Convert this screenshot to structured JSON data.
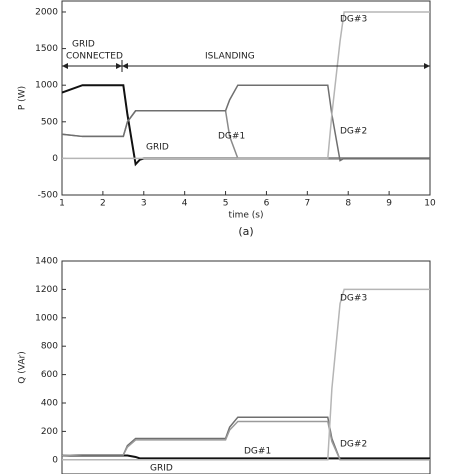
{
  "chart_data": [
    {
      "type": "line",
      "xlabel": "time (s)",
      "ylabel": "P (W)",
      "caption": "(a)",
      "xlim": [
        1,
        10
      ],
      "xticks": [
        1,
        2,
        3,
        4,
        5,
        6,
        7,
        8,
        9,
        10
      ],
      "ylim": [
        -500,
        2150
      ],
      "yticks": [
        -500,
        0,
        500,
        1000,
        1500,
        2000
      ],
      "x": [
        1,
        1.5,
        2.5,
        2.6,
        2.8,
        2.9,
        3,
        5,
        5.1,
        5.3,
        7.5,
        7.6,
        7.8,
        7.9,
        10
      ],
      "series": [
        {
          "name": "GRID",
          "color": "#111111",
          "values": [
            900,
            1000,
            1000,
            600,
            -80,
            -20,
            0,
            0,
            0,
            0,
            0,
            0,
            0,
            0,
            0
          ]
        },
        {
          "name": "DG#1",
          "color": "#8a8a8a",
          "values": [
            330,
            300,
            300,
            500,
            650,
            650,
            650,
            650,
            300,
            0,
            0,
            0,
            0,
            0,
            0
          ]
        },
        {
          "name": "DG#2",
          "color": "#6f6f6f",
          "values": [
            330,
            300,
            300,
            500,
            650,
            650,
            650,
            650,
            800,
            1000,
            1000,
            600,
            -30,
            0,
            0
          ]
        },
        {
          "name": "DG#3",
          "color": "#b5b5b5",
          "values": [
            0,
            0,
            0,
            0,
            0,
            0,
            0,
            0,
            0,
            0,
            0,
            600,
            1600,
            2000,
            2000
          ]
        }
      ],
      "annotations": [
        "GRID",
        "CONNECTED",
        "ISLANDING",
        "GRID",
        "DG#1",
        "DG#2",
        "DG#3"
      ]
    },
    {
      "type": "line",
      "ylabel": "Q (VAr)",
      "xlim": [
        1,
        10
      ],
      "ylim": [
        -100,
        1400
      ],
      "yticks": [
        0,
        200,
        400,
        600,
        800,
        1000,
        1200,
        1400
      ],
      "x": [
        1,
        1.5,
        2.5,
        2.6,
        2.8,
        2.9,
        3,
        5,
        5.1,
        5.3,
        7.5,
        7.6,
        7.8,
        7.9,
        10
      ],
      "series": [
        {
          "name": "GRID",
          "color": "#111111",
          "values": [
            30,
            30,
            30,
            30,
            20,
            10,
            10,
            10,
            10,
            10,
            10,
            10,
            10,
            10,
            10
          ]
        },
        {
          "name": "DG#1",
          "color": "#6f6f6f",
          "values": [
            30,
            35,
            35,
            100,
            150,
            150,
            150,
            150,
            230,
            300,
            300,
            150,
            0,
            0,
            0
          ]
        },
        {
          "name": "DG#2",
          "color": "#9a9a9a",
          "values": [
            30,
            35,
            35,
            90,
            140,
            140,
            140,
            140,
            210,
            270,
            270,
            130,
            0,
            0,
            0
          ]
        },
        {
          "name": "DG#3",
          "color": "#b5b5b5",
          "values": [
            0,
            0,
            0,
            0,
            0,
            0,
            0,
            0,
            0,
            0,
            0,
            500,
            1100,
            1200,
            1200
          ]
        }
      ],
      "annotations": [
        "DG#3",
        "DG#2",
        "DG#1",
        "GRID"
      ]
    }
  ]
}
